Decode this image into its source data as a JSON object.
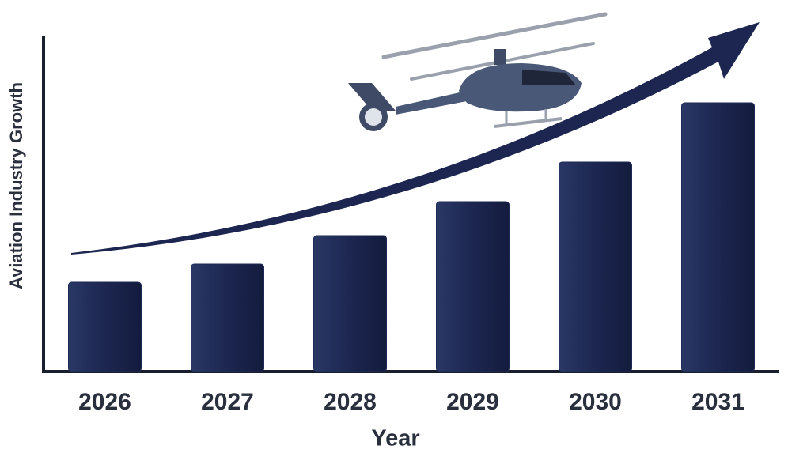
{
  "chart_data": {
    "type": "bar",
    "categories": [
      "2026",
      "2027",
      "2028",
      "2029",
      "2030",
      "2031"
    ],
    "values": [
      113,
      136,
      172,
      215,
      265,
      340
    ],
    "color": "#1e2a55",
    "ylim": [
      0,
      425
    ],
    "xlabel": "Year",
    "ylabel": "Aviation Industry Growth"
  }
}
